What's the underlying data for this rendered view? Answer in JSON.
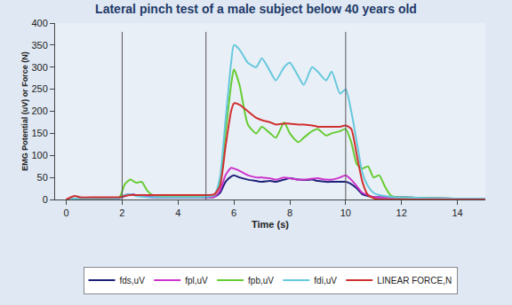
{
  "chart_data": {
    "type": "line",
    "title": "Lateral pinch test of a male subject below 40 years old",
    "x_label": "Time (s)",
    "y_label": "EMG Potential (uV) or Force (N)",
    "x": [
      0,
      0.3,
      0.5,
      1,
      1.5,
      1.9,
      2.1,
      2.3,
      2.5,
      2.7,
      2.9,
      3.1,
      3.5,
      4,
      4.5,
      5,
      5.3,
      5.5,
      5.7,
      5.9,
      6.0,
      6.2,
      6.5,
      6.8,
      7.0,
      7.3,
      7.5,
      7.8,
      8.0,
      8.3,
      8.5,
      8.8,
      9.0,
      9.3,
      9.5,
      9.8,
      10.0,
      10.2,
      10.4,
      10.6,
      10.8,
      11.0,
      11.2,
      11.4,
      11.6,
      11.8,
      12,
      13,
      14,
      15
    ],
    "series": [
      {
        "name": "fds,uV",
        "color": "#1c1f78",
        "values": [
          0,
          1,
          2,
          2,
          2,
          3,
          8,
          12,
          10,
          8,
          6,
          5,
          5,
          5,
          5,
          5,
          6,
          15,
          40,
          52,
          55,
          50,
          45,
          42,
          40,
          42,
          40,
          45,
          48,
          45,
          44,
          45,
          42,
          40,
          40,
          40,
          40,
          35,
          25,
          12,
          8,
          5,
          5,
          5,
          5,
          5,
          5,
          3,
          2,
          2
        ]
      },
      {
        "name": "fpl,uV",
        "color": "#cc33cc",
        "values": [
          0,
          1,
          2,
          2,
          2,
          3,
          10,
          12,
          10,
          8,
          6,
          5,
          5,
          5,
          5,
          5,
          6,
          20,
          55,
          72,
          70,
          65,
          55,
          50,
          50,
          48,
          45,
          50,
          48,
          45,
          45,
          47,
          48,
          45,
          45,
          50,
          55,
          45,
          30,
          15,
          10,
          5,
          5,
          5,
          5,
          5,
          5,
          3,
          2,
          2
        ]
      },
      {
        "name": "fpb,uV",
        "color": "#66cc33",
        "values": [
          0,
          2,
          3,
          3,
          3,
          5,
          35,
          45,
          38,
          40,
          20,
          10,
          8,
          8,
          8,
          8,
          10,
          40,
          150,
          260,
          295,
          260,
          170,
          150,
          165,
          150,
          140,
          175,
          150,
          130,
          140,
          155,
          160,
          145,
          150,
          155,
          160,
          130,
          80,
          70,
          75,
          50,
          55,
          30,
          10,
          5,
          5,
          3,
          2,
          2
        ]
      },
      {
        "name": "fdi,uV",
        "color": "#66c8dc",
        "values": [
          0,
          2,
          3,
          3,
          3,
          3,
          10,
          12,
          8,
          6,
          5,
          5,
          5,
          5,
          5,
          6,
          10,
          50,
          180,
          310,
          350,
          340,
          310,
          300,
          320,
          290,
          270,
          300,
          310,
          280,
          260,
          300,
          290,
          270,
          290,
          240,
          250,
          200,
          130,
          60,
          30,
          15,
          10,
          8,
          6,
          5,
          5,
          3,
          2,
          2
        ]
      },
      {
        "name": "LINEAR FORCE,N",
        "color": "#d03030",
        "values": [
          0,
          8,
          5,
          5,
          5,
          5,
          8,
          10,
          10,
          10,
          10,
          10,
          10,
          10,
          10,
          10,
          12,
          30,
          120,
          200,
          218,
          215,
          200,
          185,
          180,
          175,
          170,
          172,
          172,
          170,
          170,
          168,
          165,
          165,
          165,
          165,
          168,
          160,
          100,
          40,
          10,
          3,
          0,
          0,
          0,
          0,
          0,
          0,
          0,
          0
        ]
      }
    ],
    "vertical_lines": [
      2,
      5,
      10
    ],
    "xlim": [
      -0.4,
      15
    ],
    "xticks": [
      0,
      2,
      4,
      6,
      8,
      10,
      12,
      14
    ],
    "ylim": [
      0,
      400
    ],
    "yticks": [
      0,
      50,
      100,
      150,
      200,
      250,
      300,
      350,
      400
    ],
    "grid": false,
    "legend": "bottom"
  }
}
